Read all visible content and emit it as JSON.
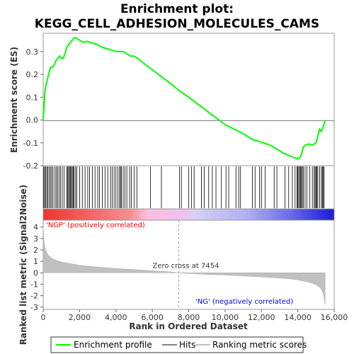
{
  "chart_data": {
    "type": "line",
    "title_line1": "Enrichment plot:",
    "title_line2": "KEGG_CELL_ADHESION_MOLECULES_CAMS",
    "top_panel": {
      "ylabel": "Enrichment score (ES)",
      "ylim": [
        -0.2,
        0.38
      ],
      "yticks": [
        -0.2,
        -0.1,
        0.0,
        0.1,
        0.2,
        0.3
      ],
      "ytick_labels": [
        "-0.2",
        "-0.1",
        "0.0",
        "0.1",
        "0.2",
        "0.3"
      ],
      "zero_line": true
    },
    "bottom_panel": {
      "ylabel": "Ranked list metric (Signal2Noise)",
      "ylim": [
        -3.2,
        4.6
      ],
      "yticks": [
        -3,
        -2,
        -1,
        0,
        1,
        2,
        3,
        4
      ],
      "ytick_labels": [
        "-3",
        "-2",
        "-1",
        "0",
        "1",
        "2",
        "3",
        "4"
      ],
      "zero_cross_label": "Zero cross at 7454",
      "zero_cross": 7454,
      "positive_label": "'NGP' (positively correlated)",
      "negative_label": "'NG' (negatively correlated)"
    },
    "xlabel": "Rank in Ordered Dataset",
    "xlim": [
      0,
      16000
    ],
    "xticks": [
      0,
      2000,
      4000,
      6000,
      8000,
      10000,
      12000,
      14000,
      16000
    ],
    "xtick_labels": [
      "0",
      "2,000",
      "4,000",
      "6,000",
      "8,000",
      "10,000",
      "12,000",
      "14,000",
      "16,000"
    ],
    "n_genes": 15500,
    "series": [
      {
        "name": "Enrichment profile",
        "color": "#00ff00",
        "x": [
          0,
          100,
          200,
          300,
          400,
          500,
          600,
          700,
          800,
          900,
          1000,
          1100,
          1200,
          1300,
          1400,
          1500,
          1600,
          1700,
          1800,
          1900,
          2000,
          2100,
          2200,
          2400,
          2600,
          2800,
          3000,
          3200,
          3400,
          3600,
          3800,
          4000,
          4200,
          4400,
          4600,
          4800,
          5000,
          5200,
          5500,
          6000,
          6500,
          7000,
          7454,
          8000,
          8500,
          9000,
          9500,
          10000,
          10500,
          11000,
          11500,
          11700,
          11900,
          12100,
          12300,
          12600,
          12900,
          13200,
          13500,
          13800,
          14000,
          14100,
          14200,
          14300,
          14400,
          14600,
          14800,
          15000,
          15100,
          15200,
          15300,
          15400,
          15500
        ],
        "y": [
          0.0,
          0.13,
          0.17,
          0.2,
          0.23,
          0.23,
          0.24,
          0.26,
          0.27,
          0.28,
          0.27,
          0.27,
          0.29,
          0.32,
          0.33,
          0.34,
          0.35,
          0.36,
          0.36,
          0.355,
          0.35,
          0.345,
          0.34,
          0.345,
          0.34,
          0.335,
          0.33,
          0.32,
          0.315,
          0.31,
          0.305,
          0.3,
          0.3,
          0.3,
          0.29,
          0.28,
          0.28,
          0.27,
          0.25,
          0.22,
          0.19,
          0.16,
          0.13,
          0.1,
          0.07,
          0.04,
          0.01,
          -0.02,
          -0.04,
          -0.06,
          -0.085,
          -0.09,
          -0.095,
          -0.1,
          -0.105,
          -0.115,
          -0.13,
          -0.145,
          -0.155,
          -0.165,
          -0.17,
          -0.165,
          -0.15,
          -0.12,
          -0.11,
          -0.105,
          -0.11,
          -0.1,
          -0.07,
          -0.04,
          -0.05,
          -0.03,
          0.0
        ]
      }
    ],
    "hits": [
      30,
      80,
      130,
      200,
      260,
      330,
      400,
      470,
      540,
      650,
      720,
      800,
      880,
      950,
      1050,
      1150,
      1300,
      1350,
      1400,
      1450,
      1500,
      1550,
      1600,
      1650,
      1700,
      1780,
      1850,
      2000,
      2150,
      2300,
      2450,
      2550,
      2700,
      2850,
      3000,
      3100,
      3250,
      3400,
      3550,
      3700,
      3800,
      3900,
      4000,
      4100,
      4200,
      4250,
      4300,
      4400,
      4500,
      4600,
      4750,
      4850,
      5000,
      5150,
      5900,
      6500,
      7500,
      7600,
      8000,
      8150,
      8300,
      8700,
      8850,
      9100,
      9300,
      9500,
      9800,
      10050,
      10200,
      10600,
      10750,
      10850,
      11500,
      11650,
      11900,
      12000,
      12200,
      12700,
      12850,
      13300,
      13500,
      13700,
      13850,
      13950,
      14000,
      14050,
      14100,
      14150,
      14200,
      14250,
      14300,
      14400,
      14500,
      14650,
      14800,
      14900,
      14950,
      15000,
      15050,
      15100,
      15200,
      15300,
      15350,
      15400,
      15450
    ],
    "ranking_metric": {
      "x": [
        0,
        20,
        50,
        100,
        200,
        300,
        500,
        700,
        1000,
        1500,
        2000,
        3000,
        4000,
        5000,
        6000,
        7000,
        7454,
        8000,
        9000,
        10000,
        11000,
        12000,
        13000,
        13500,
        14000,
        14500,
        14800,
        15000,
        15200,
        15300,
        15400,
        15450,
        15500
      ],
      "y": [
        4.2,
        3.3,
        2.7,
        2.2,
        1.75,
        1.5,
        1.25,
        1.1,
        0.95,
        0.8,
        0.65,
        0.5,
        0.38,
        0.28,
        0.18,
        0.08,
        0.0,
        -0.06,
        -0.14,
        -0.2,
        -0.28,
        -0.36,
        -0.46,
        -0.52,
        -0.62,
        -0.78,
        -0.92,
        -1.05,
        -1.25,
        -1.45,
        -1.8,
        -2.3,
        -2.8
      ]
    },
    "legend": [
      {
        "label": "Enrichment profile",
        "color": "#00ff00"
      },
      {
        "label": "Hits",
        "color": "#000000"
      },
      {
        "label": "Ranking metric scores",
        "color": "#c0c0c0"
      }
    ],
    "colors": {
      "positive": "#ff0000",
      "negative": "#0000ff",
      "pos_label": "#ff0000",
      "neg_label": "#0000ff",
      "metric_fill": "#c0c0c0"
    }
  }
}
